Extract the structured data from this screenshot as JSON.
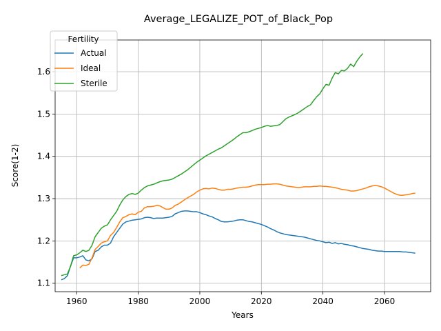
{
  "chart_data": {
    "type": "line",
    "title": "Average_LEGALIZE_POT_of_Black_Pop",
    "xlabel": "Years",
    "ylabel": "Score(1-2)",
    "xlim": [
      1953,
      2075
    ],
    "ylim": [
      1.08,
      1.675
    ],
    "xticks": [
      1960,
      1980,
      2000,
      2020,
      2040,
      2060
    ],
    "yticks": [
      1.1,
      1.2,
      1.3,
      1.4,
      1.5,
      1.6
    ],
    "grid": true,
    "legend": {
      "title": "Fertility",
      "placement": "upper-left"
    },
    "series": [
      {
        "name": "Actual",
        "color": "#1f77b4",
        "x": [
          1955,
          1956,
          1957,
          1958,
          1959,
          1960,
          1961,
          1962,
          1963,
          1964,
          1965,
          1966,
          1967,
          1968,
          1969,
          1970,
          1971,
          1972,
          1973,
          1974,
          1975,
          1976,
          1977,
          1978,
          1979,
          1980,
          1981,
          1982,
          1983,
          1984,
          1985,
          1986,
          1987,
          1988,
          1989,
          1990,
          1991,
          1992,
          1993,
          1994,
          1995,
          1996,
          1997,
          1998,
          1999,
          2000,
          2001,
          2002,
          2003,
          2004,
          2005,
          2006,
          2007,
          2008,
          2009,
          2010,
          2011,
          2012,
          2013,
          2014,
          2015,
          2016,
          2017,
          2018,
          2019,
          2020,
          2021,
          2022,
          2023,
          2024,
          2025,
          2026,
          2027,
          2028,
          2029,
          2030,
          2031,
          2032,
          2033,
          2034,
          2035,
          2036,
          2037,
          2038,
          2039,
          2040,
          2041,
          2042,
          2043,
          2044,
          2045,
          2046,
          2047,
          2048,
          2049,
          2050,
          2051,
          2052,
          2053,
          2054,
          2055,
          2056,
          2057,
          2058,
          2059,
          2060,
          2061,
          2062,
          2063,
          2064,
          2065,
          2066,
          2067,
          2068,
          2069,
          2070
        ],
        "values": [
          1.108,
          1.111,
          1.118,
          1.14,
          1.16,
          1.16,
          1.162,
          1.165,
          1.155,
          1.153,
          1.158,
          1.175,
          1.178,
          1.186,
          1.19,
          1.19,
          1.195,
          1.21,
          1.22,
          1.23,
          1.24,
          1.245,
          1.247,
          1.249,
          1.25,
          1.251,
          1.252,
          1.255,
          1.256,
          1.255,
          1.253,
          1.254,
          1.254,
          1.254,
          1.255,
          1.256,
          1.258,
          1.264,
          1.267,
          1.27,
          1.271,
          1.271,
          1.27,
          1.269,
          1.269,
          1.267,
          1.264,
          1.262,
          1.259,
          1.257,
          1.253,
          1.25,
          1.246,
          1.245,
          1.245,
          1.246,
          1.247,
          1.249,
          1.25,
          1.25,
          1.248,
          1.246,
          1.245,
          1.243,
          1.241,
          1.239,
          1.236,
          1.233,
          1.229,
          1.226,
          1.222,
          1.219,
          1.217,
          1.215,
          1.214,
          1.213,
          1.212,
          1.211,
          1.21,
          1.209,
          1.207,
          1.205,
          1.203,
          1.201,
          1.2,
          1.198,
          1.196,
          1.197,
          1.194,
          1.196,
          1.193,
          1.194,
          1.192,
          1.191,
          1.189,
          1.188,
          1.186,
          1.184,
          1.182,
          1.181,
          1.18,
          1.178,
          1.177,
          1.176,
          1.176,
          1.175,
          1.175,
          1.175,
          1.175,
          1.175,
          1.175,
          1.174,
          1.174,
          1.173,
          1.172,
          1.171
        ]
      },
      {
        "name": "Ideal",
        "color": "#ff7f0e",
        "x": [
          1961,
          1962,
          1963,
          1964,
          1965,
          1966,
          1967,
          1968,
          1969,
          1970,
          1971,
          1972,
          1973,
          1974,
          1975,
          1976,
          1977,
          1978,
          1979,
          1980,
          1981,
          1982,
          1983,
          1984,
          1985,
          1986,
          1987,
          1988,
          1989,
          1990,
          1991,
          1992,
          1993,
          1994,
          1995,
          1996,
          1997,
          1998,
          1999,
          2000,
          2001,
          2002,
          2003,
          2004,
          2005,
          2006,
          2007,
          2008,
          2009,
          2010,
          2011,
          2012,
          2013,
          2014,
          2015,
          2016,
          2017,
          2018,
          2019,
          2020,
          2021,
          2022,
          2023,
          2024,
          2025,
          2026,
          2027,
          2028,
          2029,
          2030,
          2031,
          2032,
          2033,
          2034,
          2035,
          2036,
          2037,
          2038,
          2039,
          2040,
          2041,
          2042,
          2043,
          2044,
          2045,
          2046,
          2047,
          2048,
          2049,
          2050,
          2051,
          2052,
          2053,
          2054,
          2055,
          2056,
          2057,
          2058,
          2059,
          2060,
          2061,
          2062,
          2063,
          2064,
          2065,
          2066,
          2067,
          2068,
          2069,
          2070
        ],
        "values": [
          1.136,
          1.143,
          1.142,
          1.145,
          1.16,
          1.18,
          1.187,
          1.195,
          1.198,
          1.2,
          1.213,
          1.22,
          1.232,
          1.245,
          1.255,
          1.258,
          1.262,
          1.264,
          1.262,
          1.268,
          1.27,
          1.278,
          1.281,
          1.281,
          1.282,
          1.284,
          1.283,
          1.279,
          1.275,
          1.275,
          1.278,
          1.284,
          1.287,
          1.292,
          1.297,
          1.302,
          1.306,
          1.31,
          1.316,
          1.32,
          1.323,
          1.324,
          1.323,
          1.325,
          1.324,
          1.322,
          1.32,
          1.32,
          1.322,
          1.322,
          1.323,
          1.325,
          1.326,
          1.327,
          1.327,
          1.328,
          1.33,
          1.332,
          1.333,
          1.333,
          1.333,
          1.334,
          1.334,
          1.335,
          1.335,
          1.334,
          1.332,
          1.33,
          1.329,
          1.328,
          1.327,
          1.326,
          1.327,
          1.328,
          1.328,
          1.328,
          1.329,
          1.329,
          1.33,
          1.329,
          1.329,
          1.328,
          1.327,
          1.326,
          1.324,
          1.322,
          1.321,
          1.32,
          1.318,
          1.318,
          1.319,
          1.321,
          1.323,
          1.325,
          1.328,
          1.33,
          1.331,
          1.33,
          1.328,
          1.325,
          1.321,
          1.317,
          1.313,
          1.31,
          1.308,
          1.308,
          1.309,
          1.31,
          1.312,
          1.313
        ]
      },
      {
        "name": "Sterile",
        "color": "#2ca02c",
        "x": [
          1955,
          1956,
          1957,
          1958,
          1959,
          1960,
          1961,
          1962,
          1963,
          1964,
          1965,
          1966,
          1967,
          1968,
          1969,
          1970,
          1971,
          1972,
          1973,
          1974,
          1975,
          1976,
          1977,
          1978,
          1979,
          1980,
          1981,
          1982,
          1983,
          1984,
          1985,
          1986,
          1987,
          1988,
          1989,
          1990,
          1991,
          1992,
          1993,
          1994,
          1995,
          1996,
          1997,
          1998,
          1999,
          2000,
          2001,
          2002,
          2003,
          2004,
          2005,
          2006,
          2007,
          2008,
          2009,
          2010,
          2011,
          2012,
          2013,
          2014,
          2015,
          2016,
          2017,
          2018,
          2019,
          2020,
          2021,
          2022,
          2023,
          2024,
          2025,
          2026,
          2027,
          2028,
          2029,
          2030,
          2031,
          2032,
          2033,
          2034,
          2035,
          2036,
          2037,
          2038,
          2039,
          2040,
          2041,
          2042,
          2043,
          2044,
          2045,
          2046,
          2047,
          2048,
          2049,
          2050,
          2051,
          2052,
          2053
        ],
        "values": [
          1.118,
          1.12,
          1.122,
          1.14,
          1.165,
          1.167,
          1.172,
          1.178,
          1.175,
          1.178,
          1.19,
          1.21,
          1.22,
          1.23,
          1.235,
          1.238,
          1.25,
          1.26,
          1.27,
          1.285,
          1.297,
          1.305,
          1.31,
          1.312,
          1.31,
          1.313,
          1.32,
          1.326,
          1.33,
          1.332,
          1.334,
          1.337,
          1.34,
          1.342,
          1.343,
          1.344,
          1.346,
          1.35,
          1.354,
          1.358,
          1.363,
          1.368,
          1.374,
          1.38,
          1.386,
          1.391,
          1.396,
          1.401,
          1.405,
          1.409,
          1.413,
          1.417,
          1.42,
          1.425,
          1.43,
          1.435,
          1.44,
          1.446,
          1.451,
          1.456,
          1.456,
          1.458,
          1.461,
          1.464,
          1.466,
          1.468,
          1.471,
          1.473,
          1.471,
          1.472,
          1.473,
          1.475,
          1.482,
          1.489,
          1.493,
          1.496,
          1.499,
          1.503,
          1.508,
          1.513,
          1.518,
          1.522,
          1.532,
          1.541,
          1.548,
          1.56,
          1.57,
          1.568,
          1.585,
          1.598,
          1.595,
          1.603,
          1.602,
          1.608,
          1.618,
          1.612,
          1.625,
          1.635,
          1.643
        ]
      }
    ]
  }
}
